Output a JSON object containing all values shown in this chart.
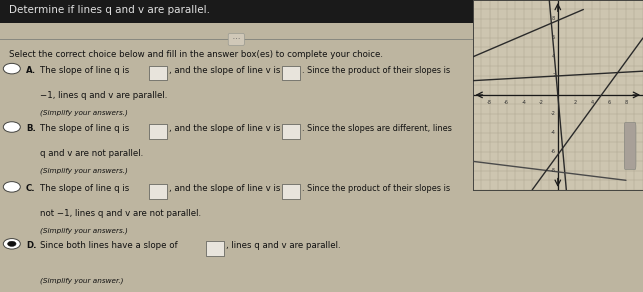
{
  "title": "Determine if lines q and v are parallel.",
  "separator_label": "···",
  "instruction": "Select the correct choice below and fill in the answer box(es) to complete your choice.",
  "choices": [
    {
      "letter": "A",
      "line1": "The slope of line q is [BOX], and the slope of line v is [BOX]. Since the product of their slopes is",
      "line2": "−1, lines q and v are parallel.",
      "note": "(Simplify your answers.)",
      "selected": false
    },
    {
      "letter": "B",
      "line1": "The slope of line q is [BOX], and the slope of line v is [BOX]. Since the slopes are different, lines",
      "line2": "q and v are not parallel.",
      "note": "(Simplify your answers.)",
      "selected": false
    },
    {
      "letter": "C",
      "line1": "The slope of line q is [BOX], and the slope of line v is [BOX]. Since the product of their slopes is",
      "line2": "not −1, lines q and v are not parallel.",
      "note": "(Simplify your answers.)",
      "selected": false
    },
    {
      "letter": "D",
      "line1": "Since both lines have a slope of [BOX], lines q and v are parallel.",
      "line2": "",
      "note": "(Simplify your answer.)",
      "selected": true
    }
  ],
  "graph": {
    "xlim": [
      -10,
      10
    ],
    "ylim": [
      -10,
      10
    ],
    "lines": [
      {
        "x1": -10,
        "y1": 4,
        "x2": 3,
        "y2": 9,
        "color": "#2a2a2a",
        "lw": 1.0
      },
      {
        "x1": -10,
        "y1": 1.5,
        "x2": 10,
        "y2": 2.5,
        "color": "#2a2a2a",
        "lw": 1.0
      },
      {
        "x1": -1,
        "y1": 10,
        "x2": 1,
        "y2": -10,
        "color": "#2a2a2a",
        "lw": 1.0
      },
      {
        "x1": -10,
        "y1": -7,
        "x2": 8,
        "y2": -9,
        "color": "#4a4a4a",
        "lw": 1.0
      },
      {
        "x1": -3,
        "y1": -10,
        "x2": 10,
        "y2": 6,
        "color": "#2a2a2a",
        "lw": 1.0
      }
    ],
    "bg_color": "#cdc5b0",
    "grid_color": "#b0a890",
    "tick_color": "#333333"
  },
  "left_bg": "#bdb5a0",
  "right_bg": "#c8c0aa",
  "text_color": "#111111",
  "title_bar_color": "#2a2a2a",
  "sep_line_color": "#888880"
}
